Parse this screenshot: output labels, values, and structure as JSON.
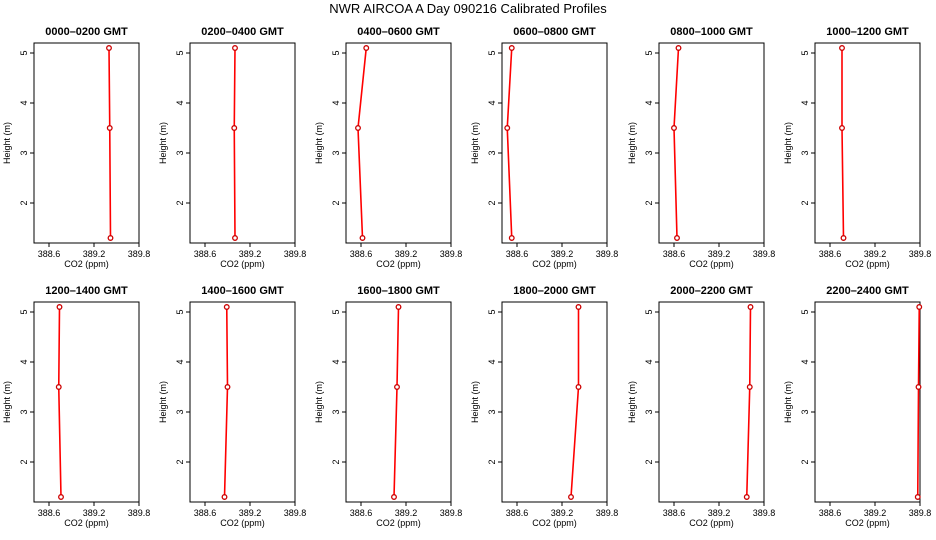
{
  "title": "NWR AIRCOA A  Day 090216  Calibrated Profiles",
  "chart_data": {
    "type": "line",
    "xlabel": "CO2 (ppm)",
    "ylabel": "Height (m)",
    "xlim": [
      388.4,
      389.8
    ],
    "ylim": [
      1.2,
      5.2
    ],
    "x_ticks": [
      "388.6",
      "389.2",
      "389.8"
    ],
    "y_ticks": [
      "2",
      "3",
      "4",
      "5"
    ],
    "heights": [
      5.1,
      3.5,
      1.3
    ],
    "line_color": "#ff0000",
    "marker_color": "#cc0000",
    "panels": [
      {
        "title": "0000–0200 GMT",
        "co2": [
          389.4,
          389.41,
          389.42
        ]
      },
      {
        "title": "0200–0400 GMT",
        "co2": [
          389.0,
          388.99,
          389.0
        ]
      },
      {
        "title": "0400–0600 GMT",
        "co2": [
          388.67,
          388.56,
          388.62
        ]
      },
      {
        "title": "0600–0800 GMT",
        "co2": [
          388.53,
          388.47,
          388.53
        ]
      },
      {
        "title": "0800–1000 GMT",
        "co2": [
          388.66,
          388.6,
          388.64
        ]
      },
      {
        "title": "1000–1200 GMT",
        "co2": [
          388.76,
          388.76,
          388.78
        ]
      },
      {
        "title": "1200–1400 GMT",
        "co2": [
          388.74,
          388.73,
          388.76
        ]
      },
      {
        "title": "1400–1600 GMT",
        "co2": [
          388.89,
          388.9,
          388.86
        ]
      },
      {
        "title": "1600–1800 GMT",
        "co2": [
          389.1,
          389.08,
          389.04
        ]
      },
      {
        "title": "1800–2000 GMT",
        "co2": [
          389.42,
          389.42,
          389.32
        ]
      },
      {
        "title": "2000–2200 GMT",
        "co2": [
          389.62,
          389.61,
          389.57
        ]
      },
      {
        "title": "2200–2400 GMT",
        "co2": [
          389.79,
          389.78,
          389.77
        ]
      }
    ]
  }
}
